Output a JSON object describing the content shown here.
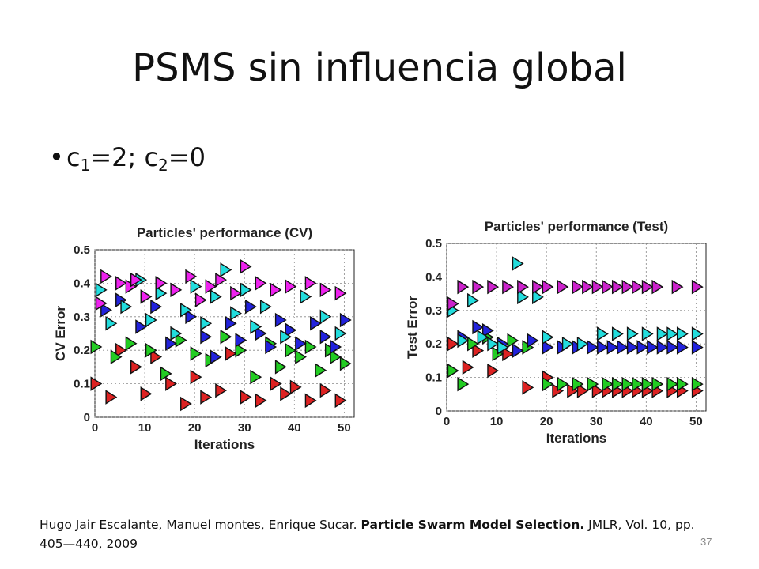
{
  "slide": {
    "title": "PSMS sin influencia global",
    "bullet": {
      "c1_label": "c",
      "c1_sub": "1",
      "c1_val": "=2; c",
      "c2_sub": "2",
      "c2_val": "=0"
    },
    "citation": {
      "authors": "Hugo Jair Escalante, Manuel montes, Enrique Sucar. ",
      "paper_title": "Particle Swarm Model Selection.",
      "venue": " JMLR, Vol. 10, pp. 405—440, 2009"
    },
    "page_number": "37"
  },
  "chart_data": [
    {
      "type": "scatter",
      "title": "Particles' performance (CV)",
      "xlabel": "Iterations",
      "ylabel": "CV Error",
      "xlim": [
        0,
        52
      ],
      "ylim": [
        0,
        0.5
      ],
      "xticks": [
        "0",
        "10",
        "20",
        "30",
        "40",
        "50"
      ],
      "yticks": [
        "0",
        "0.1",
        "0.2",
        "0.3",
        "0.4",
        "0.5"
      ],
      "grid": true,
      "marker": "triangle-right",
      "series": [
        {
          "color": "#dd2222",
          "points": [
            [
              0,
              0.1
            ],
            [
              3,
              0.06
            ],
            [
              5,
              0.2
            ],
            [
              8,
              0.15
            ],
            [
              10,
              0.07
            ],
            [
              12,
              0.18
            ],
            [
              15,
              0.1
            ],
            [
              18,
              0.04
            ],
            [
              20,
              0.12
            ],
            [
              22,
              0.06
            ],
            [
              25,
              0.08
            ],
            [
              27,
              0.19
            ],
            [
              30,
              0.06
            ],
            [
              33,
              0.05
            ],
            [
              36,
              0.1
            ],
            [
              38,
              0.07
            ],
            [
              40,
              0.09
            ],
            [
              43,
              0.05
            ],
            [
              46,
              0.08
            ],
            [
              49,
              0.05
            ]
          ]
        },
        {
          "color": "#22cc22",
          "points": [
            [
              0,
              0.21
            ],
            [
              4,
              0.18
            ],
            [
              7,
              0.22
            ],
            [
              11,
              0.2
            ],
            [
              14,
              0.13
            ],
            [
              17,
              0.23
            ],
            [
              20,
              0.19
            ],
            [
              23,
              0.17
            ],
            [
              26,
              0.24
            ],
            [
              29,
              0.2
            ],
            [
              32,
              0.12
            ],
            [
              35,
              0.22
            ],
            [
              37,
              0.15
            ],
            [
              39,
              0.2
            ],
            [
              41,
              0.18
            ],
            [
              43,
              0.21
            ],
            [
              45,
              0.14
            ],
            [
              47,
              0.2
            ],
            [
              48,
              0.18
            ],
            [
              50,
              0.16
            ]
          ]
        },
        {
          "color": "#2222dd",
          "points": [
            [
              2,
              0.32
            ],
            [
              5,
              0.35
            ],
            [
              9,
              0.27
            ],
            [
              12,
              0.33
            ],
            [
              15,
              0.22
            ],
            [
              19,
              0.3
            ],
            [
              22,
              0.24
            ],
            [
              24,
              0.18
            ],
            [
              27,
              0.28
            ],
            [
              29,
              0.23
            ],
            [
              31,
              0.33
            ],
            [
              33,
              0.25
            ],
            [
              35,
              0.21
            ],
            [
              37,
              0.29
            ],
            [
              39,
              0.26
            ],
            [
              41,
              0.22
            ],
            [
              44,
              0.28
            ],
            [
              46,
              0.24
            ],
            [
              48,
              0.21
            ],
            [
              50,
              0.29
            ]
          ]
        },
        {
          "color": "#22dddd",
          "points": [
            [
              1,
              0.38
            ],
            [
              3,
              0.28
            ],
            [
              6,
              0.33
            ],
            [
              9,
              0.41
            ],
            [
              11,
              0.29
            ],
            [
              13,
              0.37
            ],
            [
              16,
              0.25
            ],
            [
              18,
              0.32
            ],
            [
              20,
              0.39
            ],
            [
              22,
              0.28
            ],
            [
              24,
              0.36
            ],
            [
              26,
              0.44
            ],
            [
              28,
              0.31
            ],
            [
              30,
              0.38
            ],
            [
              32,
              0.27
            ],
            [
              34,
              0.33
            ],
            [
              38,
              0.24
            ],
            [
              42,
              0.36
            ],
            [
              46,
              0.3
            ],
            [
              49,
              0.25
            ]
          ]
        },
        {
          "color": "#ee22ee",
          "points": [
            [
              1,
              0.34
            ],
            [
              2,
              0.42
            ],
            [
              5,
              0.4
            ],
            [
              7,
              0.39
            ],
            [
              8,
              0.41
            ],
            [
              10,
              0.36
            ],
            [
              13,
              0.4
            ],
            [
              16,
              0.38
            ],
            [
              19,
              0.42
            ],
            [
              21,
              0.35
            ],
            [
              23,
              0.39
            ],
            [
              25,
              0.41
            ],
            [
              28,
              0.37
            ],
            [
              30,
              0.45
            ],
            [
              33,
              0.4
            ],
            [
              36,
              0.38
            ],
            [
              39,
              0.39
            ],
            [
              43,
              0.4
            ],
            [
              46,
              0.38
            ],
            [
              49,
              0.37
            ]
          ]
        }
      ]
    },
    {
      "type": "scatter",
      "title": "Particles' performance (Test)",
      "xlabel": "Iterations",
      "ylabel": "Test Error",
      "xlim": [
        0,
        52
      ],
      "ylim": [
        0,
        0.5
      ],
      "xticks": [
        "0",
        "10",
        "20",
        "30",
        "40",
        "50"
      ],
      "yticks": [
        "0",
        "0.1",
        "0.2",
        "0.3",
        "0.4",
        "0.5"
      ],
      "grid": true,
      "marker": "triangle-right",
      "series": [
        {
          "color": "#dd2222",
          "points": [
            [
              1,
              0.2
            ],
            [
              4,
              0.13
            ],
            [
              6,
              0.18
            ],
            [
              9,
              0.12
            ],
            [
              12,
              0.17
            ],
            [
              16,
              0.07
            ],
            [
              20,
              0.1
            ],
            [
              22,
              0.06
            ],
            [
              25,
              0.06
            ],
            [
              27,
              0.06
            ],
            [
              30,
              0.06
            ],
            [
              32,
              0.06
            ],
            [
              34,
              0.06
            ],
            [
              36,
              0.06
            ],
            [
              38,
              0.06
            ],
            [
              40,
              0.06
            ],
            [
              42,
              0.06
            ],
            [
              45,
              0.06
            ],
            [
              47,
              0.06
            ],
            [
              50,
              0.06
            ]
          ]
        },
        {
          "color": "#22cc22",
          "points": [
            [
              1,
              0.12
            ],
            [
              3,
              0.08
            ],
            [
              5,
              0.2
            ],
            [
              8,
              0.22
            ],
            [
              10,
              0.17
            ],
            [
              13,
              0.21
            ],
            [
              16,
              0.19
            ],
            [
              20,
              0.08
            ],
            [
              23,
              0.08
            ],
            [
              26,
              0.08
            ],
            [
              29,
              0.08
            ],
            [
              32,
              0.08
            ],
            [
              34,
              0.08
            ],
            [
              36,
              0.08
            ],
            [
              38,
              0.08
            ],
            [
              40,
              0.08
            ],
            [
              42,
              0.08
            ],
            [
              45,
              0.08
            ],
            [
              47,
              0.08
            ],
            [
              50,
              0.08
            ]
          ]
        },
        {
          "color": "#2222dd",
          "points": [
            [
              3,
              0.22
            ],
            [
              6,
              0.25
            ],
            [
              8,
              0.24
            ],
            [
              11,
              0.2
            ],
            [
              14,
              0.18
            ],
            [
              17,
              0.21
            ],
            [
              20,
              0.19
            ],
            [
              23,
              0.19
            ],
            [
              26,
              0.19
            ],
            [
              29,
              0.19
            ],
            [
              31,
              0.19
            ],
            [
              33,
              0.19
            ],
            [
              35,
              0.19
            ],
            [
              37,
              0.19
            ],
            [
              39,
              0.19
            ],
            [
              41,
              0.19
            ],
            [
              43,
              0.19
            ],
            [
              45,
              0.19
            ],
            [
              47,
              0.19
            ],
            [
              50,
              0.19
            ]
          ]
        },
        {
          "color": "#22dddd",
          "points": [
            [
              1,
              0.3
            ],
            [
              3,
              0.21
            ],
            [
              5,
              0.33
            ],
            [
              7,
              0.22
            ],
            [
              9,
              0.2
            ],
            [
              11,
              0.19
            ],
            [
              14,
              0.44
            ],
            [
              15,
              0.34
            ],
            [
              18,
              0.34
            ],
            [
              20,
              0.22
            ],
            [
              24,
              0.2
            ],
            [
              27,
              0.2
            ],
            [
              31,
              0.23
            ],
            [
              34,
              0.23
            ],
            [
              37,
              0.23
            ],
            [
              40,
              0.23
            ],
            [
              43,
              0.23
            ],
            [
              45,
              0.23
            ],
            [
              47,
              0.23
            ],
            [
              50,
              0.23
            ]
          ]
        },
        {
          "color": "#cc22cc",
          "points": [
            [
              1,
              0.32
            ],
            [
              3,
              0.37
            ],
            [
              6,
              0.37
            ],
            [
              9,
              0.37
            ],
            [
              12,
              0.37
            ],
            [
              15,
              0.37
            ],
            [
              18,
              0.37
            ],
            [
              20,
              0.37
            ],
            [
              23,
              0.37
            ],
            [
              26,
              0.37
            ],
            [
              28,
              0.37
            ],
            [
              30,
              0.37
            ],
            [
              32,
              0.37
            ],
            [
              34,
              0.37
            ],
            [
              36,
              0.37
            ],
            [
              38,
              0.37
            ],
            [
              40,
              0.37
            ],
            [
              42,
              0.37
            ],
            [
              46,
              0.37
            ],
            [
              50,
              0.37
            ]
          ]
        }
      ]
    }
  ]
}
